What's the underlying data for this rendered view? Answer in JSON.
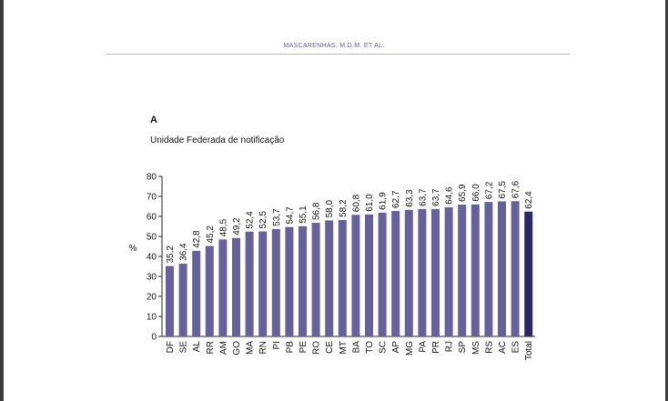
{
  "header": {
    "running_head": "MASCARENHAS, M.D.M. ET AL."
  },
  "figure": {
    "panel_letter": "A",
    "panel_title": "Unidade Federada de notificação"
  },
  "colors": {
    "bar": "#66619b",
    "total_bar": "#2b2863",
    "accent_text": "#5b5e9a"
  },
  "chart_data": {
    "type": "bar",
    "title": "Unidade Federada de notificação",
    "ylabel": "%",
    "xlabel": "",
    "ylim": [
      0,
      80
    ],
    "yticks": [
      0,
      10,
      20,
      30,
      40,
      50,
      60,
      70,
      80
    ],
    "grid": false,
    "categories": [
      "DF",
      "SE",
      "AL",
      "RR",
      "AM",
      "GO",
      "MA",
      "RN",
      "PI",
      "PB",
      "PE",
      "RO",
      "CE",
      "MT",
      "BA",
      "TO",
      "SC",
      "AP",
      "MG",
      "PA",
      "PR",
      "RJ",
      "SP",
      "MS",
      "RS",
      "AC",
      "ES",
      "Total"
    ],
    "values": [
      35.2,
      36.4,
      42.8,
      45.2,
      48.5,
      49.2,
      52.4,
      52.5,
      53.7,
      54.7,
      55.1,
      56.8,
      58.0,
      58.2,
      60.8,
      61.0,
      61.9,
      62.7,
      63.3,
      63.7,
      63.7,
      64.6,
      65.9,
      66.0,
      67.2,
      67.5,
      67.6,
      62.4
    ],
    "value_labels": [
      "35,2",
      "36,4",
      "42,8",
      "45,2",
      "48,5",
      "49,2",
      "52,4",
      "52,5",
      "53,7",
      "54,7",
      "55,1",
      "56,8",
      "58,0",
      "58,2",
      "60,8",
      "61,0",
      "61,9",
      "62,7",
      "63,3",
      "63,7",
      "63,7",
      "64,6",
      "65,9",
      "66,0",
      "67,2",
      "67,5",
      "67,6",
      "62,4"
    ],
    "highlight_category": "Total"
  }
}
